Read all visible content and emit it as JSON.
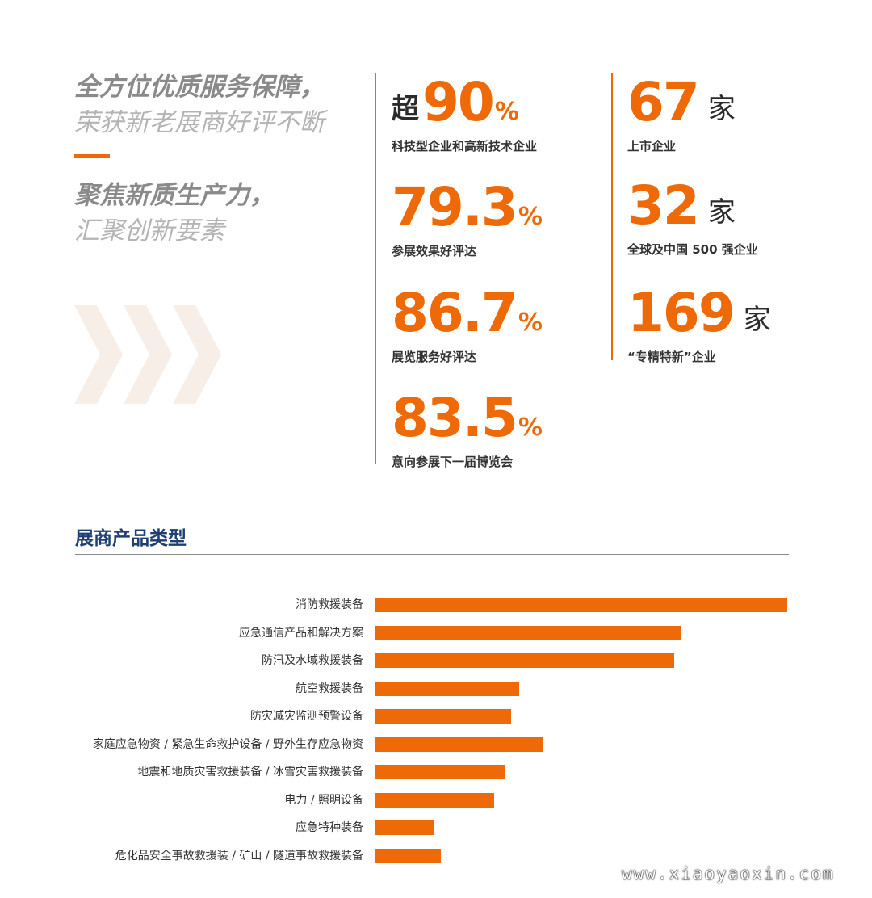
{
  "colors": {
    "accent": "#ee6a08",
    "title_blue": "#1f3f74",
    "chevron": "#f7eee8"
  },
  "slogans": {
    "line1": "全方位优质服务保障，",
    "line2": "荣获新老展商好评不断",
    "line3": "聚焦新质生产力，",
    "line4": "汇聚创新要素"
  },
  "stats_left": [
    {
      "prefix": "超",
      "number": "90",
      "suffix": "%",
      "desc": "科技型企业和高新技术企业"
    },
    {
      "prefix": "",
      "number": "79.3",
      "suffix": "%",
      "desc": "参展效果好评达"
    },
    {
      "prefix": "",
      "number": "86.7",
      "suffix": "%",
      "desc": "展览服务好评达"
    },
    {
      "prefix": "",
      "number": "83.5",
      "suffix": "%",
      "desc": "意向参展下一届博览会"
    }
  ],
  "stats_right": [
    {
      "number": "67",
      "unit": "家",
      "desc": "上市企业"
    },
    {
      "number": "32",
      "unit": "家",
      "desc": "全球及中国 500 强企业"
    },
    {
      "number": "169",
      "unit": "家",
      "desc": "“专精特新”企业"
    }
  ],
  "section_title": "展商产品类型",
  "chart_data": {
    "type": "bar",
    "orientation": "horizontal",
    "title": "展商产品类型",
    "categories": [
      "消防救援装备",
      "应急通信产品和解决方案",
      "防汛及水域救援装备",
      "航空救援装备",
      "防灾减灾监测预警设备",
      "家庭应急物资 / 紧急生命救护设备 / 野外生存应急物资",
      "地震和地质灾害救援装备 / 冰雪灾害救援装备",
      "电力 / 照明设备",
      "应急特种装备",
      "危化品安全事故救援装 / 矿山 / 隧道事故救援装备"
    ],
    "values": [
      100,
      74.3,
      72.7,
      35,
      33,
      40.7,
      31.5,
      29,
      14.5,
      16
    ],
    "xlim": [
      0,
      100
    ],
    "grid": false,
    "legend": "none"
  },
  "watermark": "www.xiaoyaoxin.com"
}
